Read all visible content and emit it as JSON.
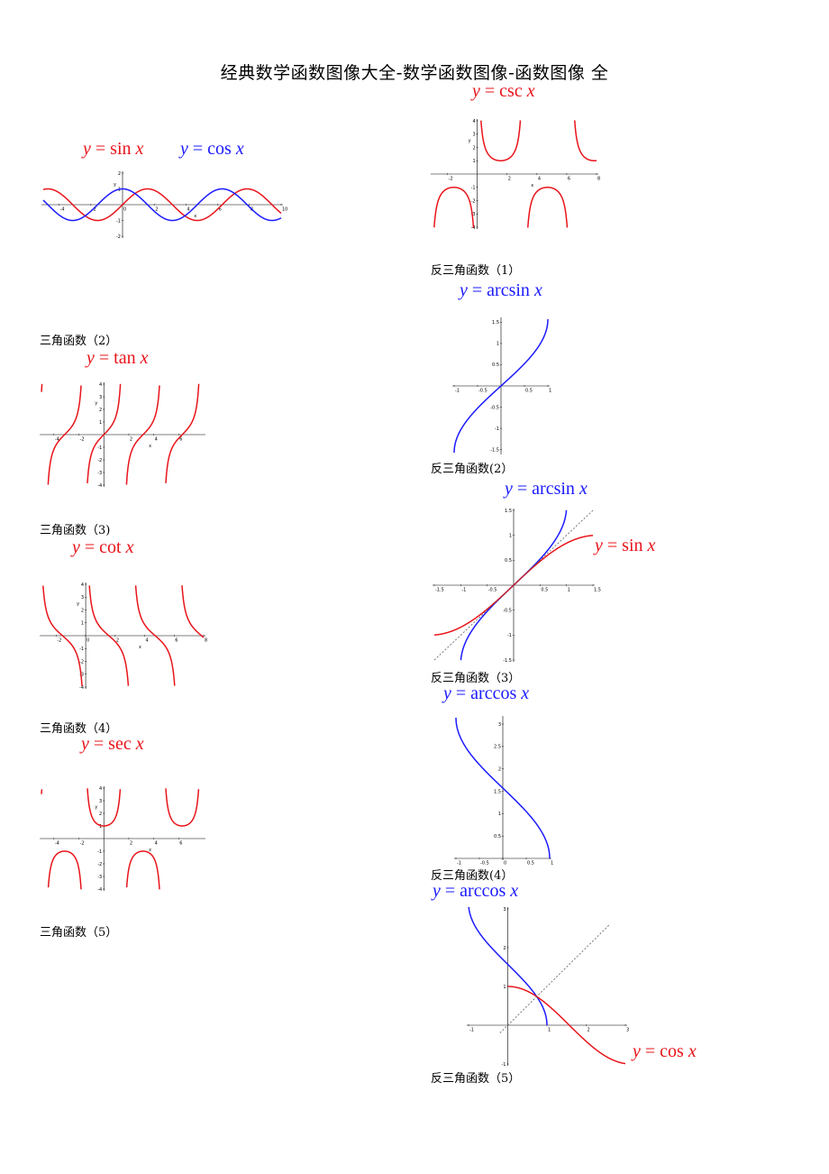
{
  "doc": {
    "title": "经典数学函数图像大全-数学函数图像-函数图像 全"
  },
  "captions": {
    "trig_2": "三角函数（2）",
    "trig_3": "三角函数（3)",
    "trig_4": "三角函数（4）",
    "trig_5": "三角函数（5）",
    "inv_1": "反三角函数（1）",
    "inv_2": "反三角函数(2）",
    "inv_3": "反三角函数（3）",
    "inv_4": "反三角函数(4）",
    "inv_5": "反三角函数（5）"
  },
  "labels": {
    "sin": {
      "y": "y",
      "eq": " = sin ",
      "x": "x"
    },
    "cos": {
      "y": "y",
      "eq": " = cos ",
      "x": "x"
    },
    "tan": {
      "y": "y",
      "eq": " = tan ",
      "x": "x"
    },
    "cot": {
      "y": "y",
      "eq": " = cot ",
      "x": "x"
    },
    "sec": {
      "y": "y",
      "eq": " = sec ",
      "x": "x"
    },
    "csc": {
      "y": "y",
      "eq": " = csc ",
      "x": "x"
    },
    "arcsin_1": {
      "y": "y",
      "eq": " = arcsin ",
      "x": "x"
    },
    "arcsin_2": {
      "y": "y",
      "eq": " = arcsin ",
      "x": "x"
    },
    "sin_2": {
      "y": "y",
      "eq": " = sin ",
      "x": "x"
    },
    "arccos_1": {
      "y": "y",
      "eq": " = arccos ",
      "x": "x"
    },
    "arccos_2": {
      "y": "y",
      "eq": " = arccos ",
      "x": "x"
    },
    "cos_2": {
      "y": "y",
      "eq": " = cos ",
      "x": "x"
    }
  },
  "colors": {
    "red": "#e8141a",
    "blue": "#1a1aff",
    "axis": "#000000",
    "diagonal": "#555555"
  },
  "chart_data": [
    {
      "id": "sincos",
      "type": "line",
      "functions": [
        "sin",
        "cos"
      ],
      "xlim": [
        -5,
        10
      ],
      "ylim": [
        -2,
        2
      ],
      "xticks": [
        "-4",
        "-2",
        "0",
        "2",
        "4",
        "6",
        "8",
        "10"
      ],
      "yticks": [
        "2",
        "1",
        "-1",
        "-2"
      ],
      "xlabel": "x",
      "ylabel": "y"
    },
    {
      "id": "tan",
      "type": "line",
      "functions": [
        "tan"
      ],
      "xlim": [
        -5,
        8
      ],
      "ylim": [
        -4,
        4
      ],
      "xticks": [
        "-4",
        "-2",
        "2",
        "4",
        "6"
      ],
      "yticks": [
        "4",
        "3",
        "2",
        "1",
        "-1",
        "-2",
        "-3",
        "-4"
      ],
      "xlabel": "x",
      "ylabel": "y"
    },
    {
      "id": "cot",
      "type": "line",
      "functions": [
        "cot"
      ],
      "xlim": [
        -3,
        8
      ],
      "ylim": [
        -4,
        4
      ],
      "xticks": [
        "-2",
        "0",
        "2",
        "4",
        "6",
        "8"
      ],
      "yticks": [
        "4",
        "3",
        "2",
        "1",
        "-1",
        "-2",
        "-3",
        "-4"
      ],
      "xlabel": "x",
      "ylabel": "y"
    },
    {
      "id": "sec",
      "type": "line",
      "functions": [
        "sec"
      ],
      "xlim": [
        -5,
        8
      ],
      "ylim": [
        -4,
        4
      ],
      "xticks": [
        "-4",
        "-2",
        "2",
        "4",
        "6"
      ],
      "yticks": [
        "4",
        "3",
        "2",
        "1",
        "-1",
        "-2",
        "-3",
        "-4"
      ],
      "xlabel": "x",
      "ylabel": "y"
    },
    {
      "id": "csc",
      "type": "line",
      "functions": [
        "csc"
      ],
      "xlim": [
        -3,
        8
      ],
      "ylim": [
        -4,
        4
      ],
      "xticks": [
        "-2",
        "2",
        "4",
        "6",
        "8"
      ],
      "yticks": [
        "4",
        "3",
        "2",
        "1",
        "-1",
        "-2",
        "-3",
        "-4"
      ],
      "xlabel": "x",
      "ylabel": "y"
    },
    {
      "id": "arcsin",
      "type": "line",
      "functions": [
        "arcsin"
      ],
      "xlim": [
        -1,
        1
      ],
      "ylim": [
        -1.5708,
        1.5708
      ],
      "xticks": [
        "-1",
        "-0.5",
        "0.5",
        "1"
      ],
      "yticks": [
        "1.5",
        "1",
        "0.5",
        "-0.5",
        "-1",
        "-1.5"
      ]
    },
    {
      "id": "arcsin_sin",
      "type": "line",
      "functions": [
        "arcsin",
        "sin",
        "identity"
      ],
      "xlim": [
        -1.5,
        1.5
      ],
      "ylim": [
        -1.5,
        1.5
      ],
      "xticks": [
        "-1.5",
        "-1",
        "-0.5",
        "0.5",
        "1",
        "1.5"
      ],
      "yticks": [
        "1.5",
        "1",
        "0.5",
        "-0.5",
        "-1",
        "-1.5"
      ]
    },
    {
      "id": "arccos",
      "type": "line",
      "functions": [
        "arccos"
      ],
      "xlim": [
        -1,
        1
      ],
      "ylim": [
        0,
        3.1416
      ],
      "xticks": [
        "-1",
        "-0.5",
        "0",
        "0.5",
        "1"
      ],
      "yticks": [
        "3",
        "2.5",
        "2",
        "1.5",
        "1",
        "0.5"
      ]
    },
    {
      "id": "arccos_cos",
      "type": "line",
      "functions": [
        "arccos",
        "cos",
        "identity"
      ],
      "xlim": [
        -1,
        3
      ],
      "ylim": [
        -1,
        3
      ],
      "xticks": [
        "-1",
        "1",
        "2",
        "3"
      ],
      "yticks": [
        "3",
        "2",
        "1",
        "-1"
      ]
    }
  ]
}
